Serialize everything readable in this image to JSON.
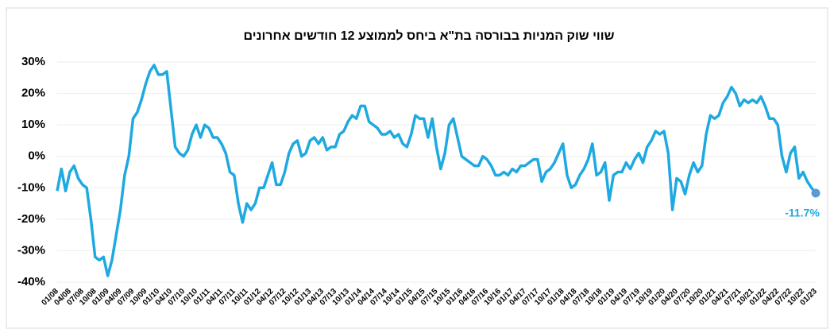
{
  "chart_data": {
    "type": "line",
    "title": "שווי שוק המניות בבורסה בת\"א ביחס לממוצע 12 חודשים אחרונים",
    "categories": [
      "01/08",
      null,
      null,
      "04/08",
      null,
      null,
      "07/08",
      null,
      null,
      "10/08",
      null,
      null,
      "01/09",
      null,
      null,
      "04/09",
      null,
      null,
      "07/09",
      null,
      null,
      "10/09",
      null,
      null,
      "01/10",
      null,
      null,
      "04/10",
      null,
      null,
      "07/10",
      null,
      null,
      "10/10",
      null,
      null,
      "01/11",
      null,
      null,
      "04/11",
      null,
      null,
      "07/11",
      null,
      null,
      "10/11",
      null,
      null,
      "01/12",
      null,
      null,
      "04/12",
      null,
      null,
      "07/12",
      null,
      null,
      "10/12",
      null,
      null,
      "01/13",
      null,
      null,
      "04/13",
      null,
      null,
      "07/13",
      null,
      null,
      "10/13",
      null,
      null,
      "01/14",
      null,
      null,
      "04/14",
      null,
      null,
      "07/14",
      null,
      null,
      "10/14",
      null,
      null,
      "01/15",
      null,
      null,
      "04/15",
      null,
      null,
      "07/15",
      null,
      null,
      "10/15",
      null,
      null,
      "01/16",
      null,
      null,
      "04/16",
      null,
      null,
      "07/16",
      null,
      null,
      "10/16",
      null,
      null,
      "01/17",
      null,
      null,
      "04/17",
      null,
      null,
      "07/17",
      null,
      null,
      "10/17",
      null,
      null,
      "01/18",
      null,
      null,
      "04/18",
      null,
      null,
      "07/18",
      null,
      null,
      "10/18",
      null,
      null,
      "01/19",
      null,
      null,
      "04/19",
      null,
      null,
      "07/19",
      null,
      null,
      "10/19",
      null,
      null,
      "01/20",
      null,
      null,
      "04/20",
      null,
      null,
      "07/20",
      null,
      null,
      "10/20",
      null,
      null,
      "01/21",
      null,
      null,
      "04/21",
      null,
      null,
      "07/21",
      null,
      null,
      "10/21",
      null,
      null,
      "01/22",
      null,
      null,
      "04/22",
      null,
      null,
      "07/22",
      null,
      null,
      "10/22",
      null,
      null,
      "01/23"
    ],
    "values": [
      -11,
      -4,
      -11,
      -5,
      -3,
      -7,
      -9,
      -10,
      -20,
      -32,
      -33,
      -32,
      -38,
      -33,
      -25,
      -17,
      -6,
      0,
      12,
      14,
      18,
      23,
      27,
      29,
      26,
      26,
      27,
      15,
      3,
      1,
      0,
      2,
      7,
      10,
      6,
      10,
      9,
      6,
      6,
      4,
      1,
      -5,
      -6,
      -15,
      -21,
      -15,
      -17,
      -15,
      -10,
      -10,
      -6,
      -2,
      -9,
      -9,
      -5,
      1,
      4,
      5,
      0,
      1,
      5,
      6,
      4,
      6,
      2,
      3,
      3,
      7,
      8,
      11,
      13,
      12,
      16,
      16,
      11,
      10,
      9,
      7,
      7,
      8,
      6,
      7,
      4,
      3,
      7,
      13,
      12,
      12,
      6,
      12,
      3,
      -4,
      1,
      10,
      12,
      6,
      0,
      -1,
      -2,
      -3,
      -3,
      0,
      -1,
      -3,
      -6,
      -6,
      -5,
      -6,
      -4,
      -5,
      -3,
      -3,
      -2,
      -1,
      -1,
      -8,
      -5,
      -4,
      -2,
      1,
      4,
      -6,
      -10,
      -9,
      -6,
      -4,
      -1,
      4,
      -6,
      -5,
      -2,
      -14,
      -6,
      -5,
      -5,
      -2,
      -4,
      -1,
      1,
      -2,
      3,
      5,
      8,
      7,
      8,
      1,
      -17,
      -7,
      -8,
      -12,
      -6,
      -2,
      -5,
      -3,
      7,
      13,
      12,
      13,
      17,
      19,
      22,
      20,
      16,
      18,
      17,
      18,
      17,
      19,
      16,
      12,
      12,
      10,
      0,
      -5,
      1,
      3,
      -7,
      -5,
      -8,
      -10,
      -11.7
    ],
    "value_labels": [
      null,
      null,
      null,
      null,
      null,
      null,
      null,
      null,
      null,
      null,
      null,
      null,
      null,
      null,
      null,
      null,
      null,
      null,
      null,
      null,
      null,
      null,
      null,
      null,
      null,
      null,
      null,
      null,
      null,
      null,
      null,
      null,
      null,
      null,
      null,
      null,
      null,
      null,
      null,
      null,
      null,
      null,
      null,
      null,
      null,
      null,
      null,
      null,
      null,
      null,
      null,
      null,
      null,
      null,
      null,
      null,
      null,
      null,
      null,
      null,
      null,
      null,
      null,
      null,
      null,
      null,
      null,
      null,
      null,
      null,
      null,
      null,
      null,
      null,
      null,
      null,
      null,
      null,
      null,
      null,
      null,
      null,
      null,
      null,
      null,
      null,
      null,
      null,
      null,
      null,
      null,
      null,
      null,
      null,
      null,
      null,
      null,
      null,
      null,
      null,
      null,
      null,
      null,
      null,
      null,
      null,
      null,
      null,
      null,
      null,
      null,
      null,
      null,
      null,
      null,
      null,
      null,
      null,
      null,
      null,
      null,
      null,
      null,
      null,
      null,
      null,
      null,
      null,
      null,
      null,
      null,
      null,
      null,
      null,
      null,
      null,
      null,
      null,
      null,
      null,
      null,
      null,
      null,
      null,
      null,
      null,
      null,
      null,
      null,
      null,
      null,
      null,
      null,
      null,
      null,
      null,
      null,
      null,
      null,
      null,
      null,
      null,
      null,
      null,
      null,
      null,
      null,
      null,
      null,
      null,
      null,
      null,
      null,
      null,
      null,
      null,
      null,
      null,
      null,
      null,
      "-11.7%"
    ],
    "color": "#1fa9e1",
    "marker_color": "#5b9bd5",
    "ylim": [
      -40,
      30
    ],
    "yticks": [
      {
        "value": -40,
        "label": "-40%"
      },
      {
        "value": -30,
        "label": "-30%"
      },
      {
        "value": -20,
        "label": "-20%"
      },
      {
        "value": -10,
        "label": "-10%"
      },
      {
        "value": 0,
        "label": "0%"
      },
      {
        "value": 10,
        "label": "10%"
      },
      {
        "value": 20,
        "label": "20%"
      },
      {
        "value": 30,
        "label": "30%"
      }
    ],
    "grid": true
  }
}
